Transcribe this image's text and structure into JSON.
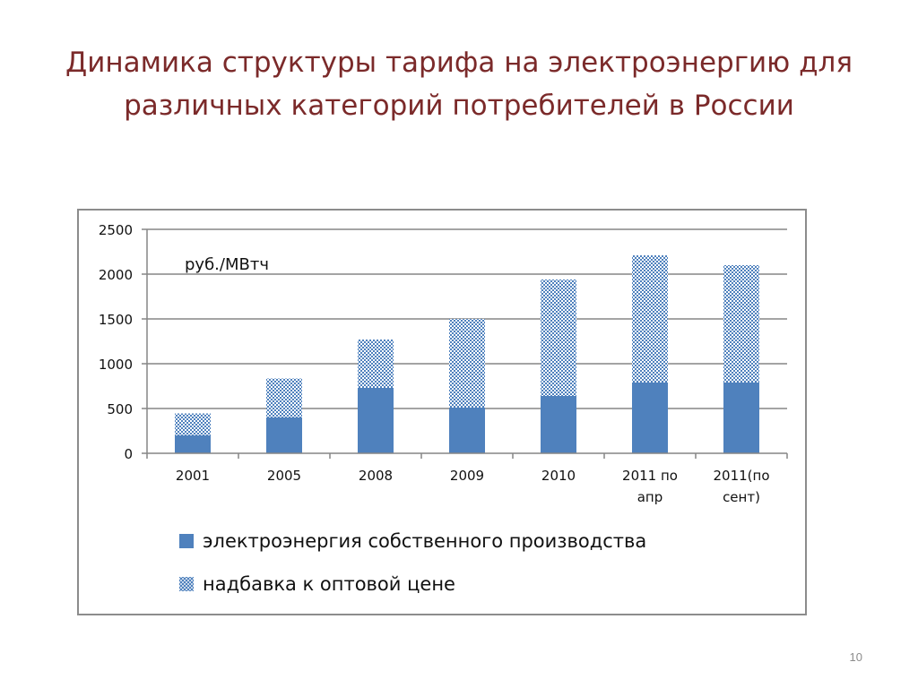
{
  "slide": {
    "title_line1": "Динамика структуры  тарифа на электроэнергию для",
    "title_line2": "различных категорий потребителей в России",
    "page_number": "10"
  },
  "colors": {
    "title": "#7b2a2a",
    "series_own": "#4f81bd",
    "series_markup_pattern": "#4f81bd",
    "gridline": "#868686"
  },
  "chart_data": {
    "type": "bar",
    "stacked": true,
    "unit_label": "руб./МВтч",
    "categories": [
      [
        "2001"
      ],
      [
        "2005"
      ],
      [
        "2008"
      ],
      [
        "2009"
      ],
      [
        "2010"
      ],
      [
        "2011 по",
        "апр"
      ],
      [
        "2011(по",
        "сент)"
      ]
    ],
    "series": [
      {
        "name": "электроэнергия собственного производства",
        "fill": "solid",
        "values": [
          200,
          400,
          730,
          510,
          640,
          790,
          790
        ]
      },
      {
        "name": "надбавка к оптовой цене",
        "fill": "pattern",
        "values": [
          245,
          435,
          540,
          990,
          1300,
          1420,
          1310
        ]
      }
    ],
    "ylim": [
      0,
      2500
    ],
    "yticks": [
      0,
      500,
      1000,
      1500,
      2000,
      2500
    ],
    "grid": true,
    "legend_position": "bottom"
  }
}
